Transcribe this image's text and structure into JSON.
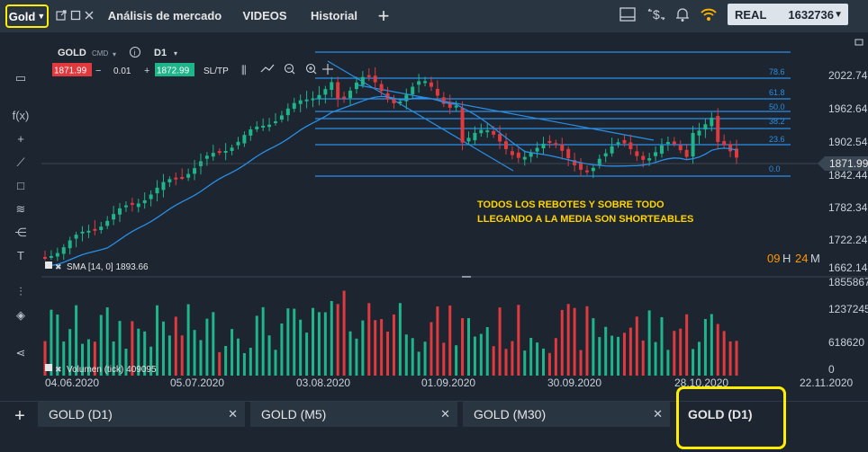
{
  "topbar": {
    "asset_label": "Gold",
    "tabs": [
      "Análisis de mercado",
      "VIDEOS",
      "Historial"
    ],
    "account_type": "REAL",
    "balance": "1632736"
  },
  "instrument": {
    "name": "GOLD",
    "sub": "CMD",
    "timeframe": "D1",
    "bid": "1871.99",
    "lot": "0.01",
    "ask": "1872.99",
    "sltp": "SL/TP"
  },
  "indicator": {
    "label": "SMA [14, 0] 1893.66"
  },
  "volume": {
    "label": "Volumen (tick) 409095"
  },
  "countdown": {
    "hours": "09",
    "h_unit": "H",
    "minutes": "24",
    "m_unit": "M"
  },
  "annotation": {
    "line1": "TODOS LOS REBOTES Y SOBRE TODO",
    "line2": "LLEGANDO A LA MEDIA SON SHORTEABLES"
  },
  "bottom_tabs": [
    {
      "label": "GOLD (D1)"
    },
    {
      "label": "GOLD (M5)"
    },
    {
      "label": "GOLD (M30)"
    },
    {
      "label": "GOLD (D1)"
    }
  ],
  "colors": {
    "up": "#1fb58a",
    "down": "#e0393e",
    "sma": "#2a8fe6",
    "fib": "#2a8fe6",
    "accent": "#ffee00"
  },
  "chart_data": {
    "type": "candlestick",
    "price_ticks": [
      "2022.74",
      "1962.64",
      "1902.54",
      "1842.44",
      "1782.34",
      "1722.24",
      "1662.14"
    ],
    "current_price": "1871.99",
    "volume_ticks": [
      "1855867",
      "1237245",
      "618620",
      "0"
    ],
    "date_ticks": [
      "04.06.2020",
      "05.07.2020",
      "03.08.2020",
      "01.09.2020",
      "30.09.2020",
      "28.10.2020",
      "22.11.2020"
    ],
    "fib_levels": [
      "78.6",
      "61.8",
      "50.0",
      "38.2",
      "23.6",
      "0.0"
    ]
  }
}
